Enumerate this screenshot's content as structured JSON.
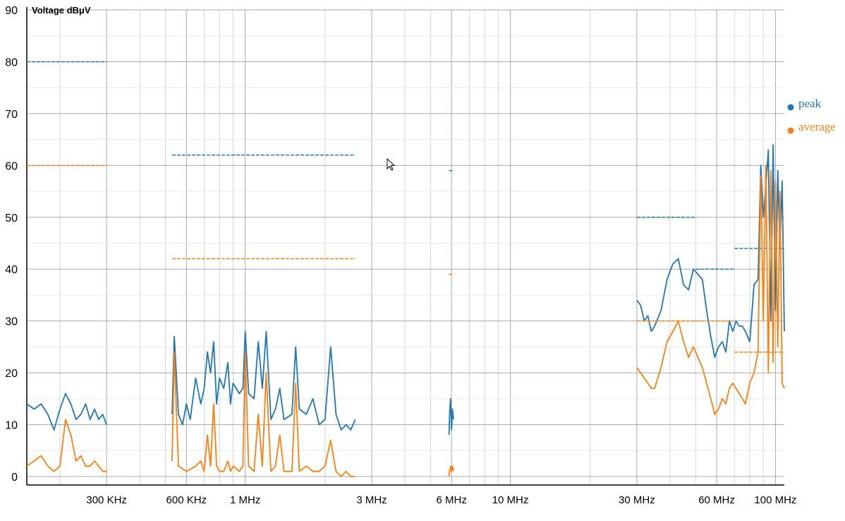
{
  "chart_data": {
    "type": "line",
    "ylabel": "Voltage dBμV",
    "xscale": "log",
    "ylim": [
      0,
      90
    ],
    "yticks": [
      0,
      10,
      20,
      30,
      40,
      50,
      60,
      70,
      80,
      90
    ],
    "xticks": [
      {
        "value": 300000,
        "label": "300 KHz"
      },
      {
        "value": 600000,
        "label": "600 KHz"
      },
      {
        "value": 1000000,
        "label": "1 MHz"
      },
      {
        "value": 3000000,
        "label": "3 MHz"
      },
      {
        "value": 6000000,
        "label": "6 MHz"
      },
      {
        "value": 10000000,
        "label": "10 MHz"
      },
      {
        "value": 30000000,
        "label": "30 MHz"
      },
      {
        "value": 60000000,
        "label": "60 MHz"
      },
      {
        "value": 100000000,
        "label": "100 MHz"
      }
    ],
    "grid": true,
    "legend_position": "right",
    "series": [
      {
        "name": "peak",
        "color": "#1f77b4",
        "segments": [
          [
            [
              150000,
              14
            ],
            [
              160000,
              13
            ],
            [
              170000,
              14
            ],
            [
              180000,
              12
            ],
            [
              190000,
              9
            ],
            [
              200000,
              13
            ],
            [
              210000,
              16
            ],
            [
              220000,
              14
            ],
            [
              230000,
              11
            ],
            [
              240000,
              12
            ],
            [
              250000,
              14
            ],
            [
              260000,
              11
            ],
            [
              270000,
              13
            ],
            [
              280000,
              11
            ],
            [
              290000,
              12
            ],
            [
              300000,
              10
            ]
          ],
          [
            [
              530000,
              12
            ],
            [
              540000,
              27
            ],
            [
              560000,
              12
            ],
            [
              580000,
              10
            ],
            [
              600000,
              14
            ],
            [
              620000,
              11
            ],
            [
              650000,
              19
            ],
            [
              680000,
              14
            ],
            [
              700000,
              17
            ],
            [
              720000,
              24
            ],
            [
              740000,
              20
            ],
            [
              760000,
              26
            ],
            [
              780000,
              14
            ],
            [
              800000,
              19
            ],
            [
              830000,
              17
            ],
            [
              860000,
              22
            ],
            [
              880000,
              14
            ],
            [
              900000,
              18
            ],
            [
              950000,
              16
            ],
            [
              980000,
              17
            ],
            [
              1000000,
              28
            ],
            [
              1030000,
              16
            ],
            [
              1080000,
              15
            ],
            [
              1120000,
              26
            ],
            [
              1160000,
              17
            ],
            [
              1200000,
              28
            ],
            [
              1250000,
              11
            ],
            [
              1300000,
              13
            ],
            [
              1350000,
              17
            ],
            [
              1400000,
              11
            ],
            [
              1500000,
              12
            ],
            [
              1550000,
              25
            ],
            [
              1600000,
              13
            ],
            [
              1700000,
              12
            ],
            [
              1800000,
              15
            ],
            [
              1900000,
              10
            ],
            [
              2000000,
              11
            ],
            [
              2100000,
              25
            ],
            [
              2200000,
              12
            ],
            [
              2300000,
              9
            ],
            [
              2400000,
              10
            ],
            [
              2500000,
              9
            ],
            [
              2600000,
              11
            ]
          ],
          [
            [
              5870000,
              8
            ],
            [
              5900000,
              12
            ],
            [
              5950000,
              15
            ],
            [
              6000000,
              9
            ],
            [
              6050000,
              13
            ],
            [
              6100000,
              11
            ]
          ],
          [
            [
              30000000,
              34
            ],
            [
              31000000,
              33
            ],
            [
              32000000,
              30
            ],
            [
              33000000,
              31
            ],
            [
              34000000,
              28
            ],
            [
              35000000,
              29
            ],
            [
              37000000,
              32
            ],
            [
              39000000,
              38
            ],
            [
              41000000,
              41
            ],
            [
              43000000,
              42
            ],
            [
              45000000,
              37
            ],
            [
              47000000,
              36
            ],
            [
              49000000,
              40
            ],
            [
              51000000,
              39
            ],
            [
              53000000,
              38
            ],
            [
              55000000,
              32
            ],
            [
              57000000,
              27
            ],
            [
              59000000,
              23
            ],
            [
              61000000,
              25
            ],
            [
              63000000,
              26
            ],
            [
              65000000,
              24
            ],
            [
              67000000,
              30
            ],
            [
              69000000,
              28
            ],
            [
              71000000,
              30
            ],
            [
              73000000,
              29
            ],
            [
              75000000,
              29
            ],
            [
              77000000,
              28
            ],
            [
              80000000,
              26
            ],
            [
              83000000,
              37
            ],
            [
              86000000,
              38
            ],
            [
              88000000,
              60
            ],
            [
              90000000,
              50
            ],
            [
              92000000,
              56
            ],
            [
              94000000,
              63
            ],
            [
              96000000,
              30
            ],
            [
              98000000,
              64
            ],
            [
              100000000,
              32
            ],
            [
              102000000,
              59
            ],
            [
              104000000,
              44
            ],
            [
              106000000,
              57
            ],
            [
              108000000,
              28
            ]
          ]
        ],
        "limits": [
          {
            "x": [
              150000,
              300000
            ],
            "y": 80
          },
          {
            "x": [
              530000,
              2600000
            ],
            "y": 62
          },
          {
            "x": [
              5870000,
              6100000
            ],
            "y": 59
          },
          {
            "x": [
              30000000,
              50000000
            ],
            "y": 50
          },
          {
            "x": [
              50000000,
              70000000
            ],
            "y": 40
          },
          {
            "x": [
              70000000,
              108000000
            ],
            "y": 44
          }
        ]
      },
      {
        "name": "average",
        "color": "#ff7f0e",
        "segments": [
          [
            [
              150000,
              2
            ],
            [
              160000,
              3
            ],
            [
              170000,
              4
            ],
            [
              180000,
              2
            ],
            [
              190000,
              1
            ],
            [
              200000,
              2
            ],
            [
              210000,
              11
            ],
            [
              220000,
              8
            ],
            [
              230000,
              3
            ],
            [
              240000,
              4
            ],
            [
              250000,
              2
            ],
            [
              260000,
              2
            ],
            [
              270000,
              3
            ],
            [
              280000,
              2
            ],
            [
              290000,
              1
            ],
            [
              300000,
              1
            ]
          ],
          [
            [
              530000,
              3
            ],
            [
              540000,
              24
            ],
            [
              560000,
              2
            ],
            [
              600000,
              1
            ],
            [
              650000,
              2
            ],
            [
              680000,
              3
            ],
            [
              700000,
              1
            ],
            [
              720000,
              8
            ],
            [
              740000,
              2
            ],
            [
              760000,
              14
            ],
            [
              780000,
              2
            ],
            [
              800000,
              1
            ],
            [
              830000,
              1
            ],
            [
              860000,
              3
            ],
            [
              880000,
              1
            ],
            [
              900000,
              2
            ],
            [
              950000,
              1
            ],
            [
              980000,
              2
            ],
            [
              1000000,
              24
            ],
            [
              1030000,
              2
            ],
            [
              1080000,
              1
            ],
            [
              1120000,
              12
            ],
            [
              1160000,
              2
            ],
            [
              1200000,
              20
            ],
            [
              1250000,
              1
            ],
            [
              1300000,
              2
            ],
            [
              1350000,
              8
            ],
            [
              1400000,
              1
            ],
            [
              1500000,
              1
            ],
            [
              1550000,
              18
            ],
            [
              1600000,
              1
            ],
            [
              1700000,
              2
            ],
            [
              1800000,
              1
            ],
            [
              1900000,
              1
            ],
            [
              2000000,
              2
            ],
            [
              2100000,
              7
            ],
            [
              2200000,
              1
            ],
            [
              2300000,
              0
            ],
            [
              2400000,
              1
            ],
            [
              2500000,
              0
            ],
            [
              2600000,
              0
            ]
          ],
          [
            [
              5870000,
              0
            ],
            [
              5900000,
              1
            ],
            [
              5950000,
              2
            ],
            [
              6000000,
              1
            ],
            [
              6050000,
              2
            ],
            [
              6100000,
              1
            ]
          ],
          [
            [
              30000000,
              21
            ],
            [
              31000000,
              20
            ],
            [
              32000000,
              19
            ],
            [
              33000000,
              18
            ],
            [
              34000000,
              17
            ],
            [
              35000000,
              17
            ],
            [
              37000000,
              21
            ],
            [
              39000000,
              26
            ],
            [
              41000000,
              28
            ],
            [
              43000000,
              30
            ],
            [
              45000000,
              26
            ],
            [
              47000000,
              23
            ],
            [
              49000000,
              25
            ],
            [
              51000000,
              23
            ],
            [
              53000000,
              21
            ],
            [
              55000000,
              18
            ],
            [
              57000000,
              15
            ],
            [
              59000000,
              12
            ],
            [
              61000000,
              13
            ],
            [
              63000000,
              15
            ],
            [
              65000000,
              14
            ],
            [
              67000000,
              17
            ],
            [
              69000000,
              18
            ],
            [
              71000000,
              17
            ],
            [
              73000000,
              16
            ],
            [
              75000000,
              15
            ],
            [
              77000000,
              14
            ],
            [
              80000000,
              18
            ],
            [
              83000000,
              20
            ],
            [
              86000000,
              24
            ],
            [
              88000000,
              58
            ],
            [
              90000000,
              30
            ],
            [
              92000000,
              60
            ],
            [
              94000000,
              20
            ],
            [
              96000000,
              59
            ],
            [
              98000000,
              22
            ],
            [
              100000000,
              57
            ],
            [
              102000000,
              25
            ],
            [
              104000000,
              55
            ],
            [
              106000000,
              18
            ],
            [
              108000000,
              17
            ]
          ]
        ],
        "limits": [
          {
            "x": [
              150000,
              300000
            ],
            "y": 60
          },
          {
            "x": [
              530000,
              2600000
            ],
            "y": 42
          },
          {
            "x": [
              5870000,
              6100000
            ],
            "y": 39
          },
          {
            "x": [
              30000000,
              70000000
            ],
            "y": 30
          },
          {
            "x": [
              70000000,
              108000000
            ],
            "y": 24
          }
        ]
      }
    ]
  }
}
